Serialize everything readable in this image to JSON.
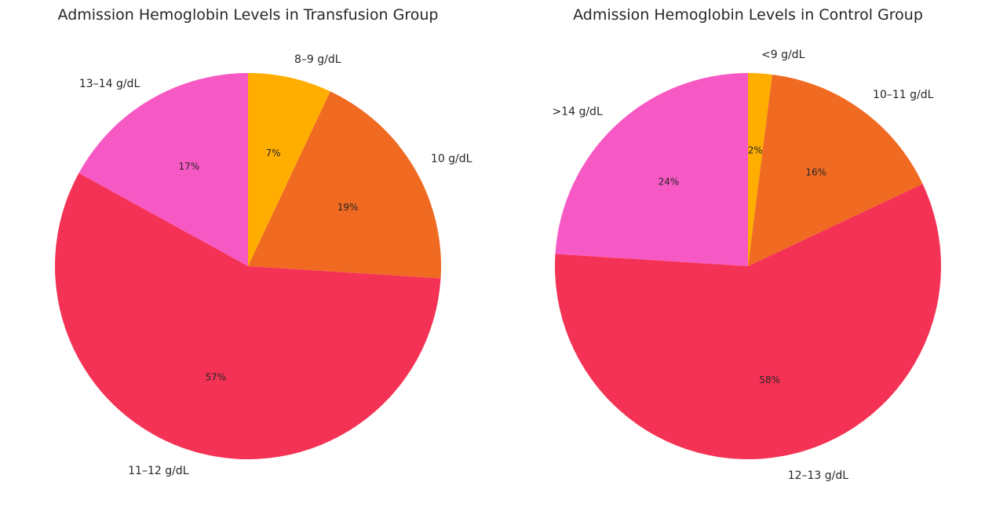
{
  "chart_data": [
    {
      "type": "pie",
      "title": "Admission Hemoglobin Levels in Transfusion Group",
      "labels": [
        "13–14 g/dL",
        "11–12 g/dL",
        "10 g/dL",
        "8–9 g/dL"
      ],
      "values": [
        17,
        57,
        19,
        7
      ],
      "percent_labels": [
        "17%",
        "57%",
        "19%",
        "7%"
      ],
      "colors": [
        "#F759C4",
        "#F43255",
        "#F06A22",
        "#FFAE00"
      ]
    },
    {
      "type": "pie",
      "title": "Admission Hemoglobin Levels in Control Group",
      "labels": [
        ">14 g/dL",
        "12–13 g/dL",
        "10–11 g/dL",
        "<9 g/dL"
      ],
      "values": [
        24,
        58,
        16,
        2
      ],
      "percent_labels": [
        "24%",
        "58%",
        "16%",
        "2%"
      ],
      "colors": [
        "#F759C4",
        "#F43255",
        "#F06A22",
        "#FFAE00"
      ]
    }
  ]
}
